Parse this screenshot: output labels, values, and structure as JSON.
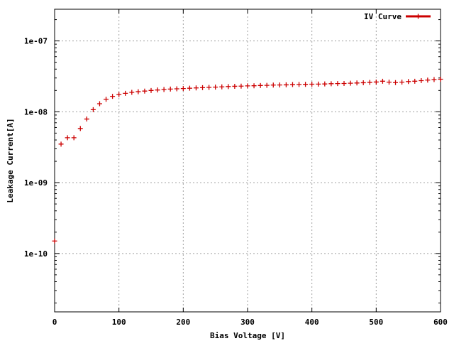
{
  "chart_data": {
    "type": "scatter",
    "title": "",
    "xlabel": "Bias Voltage [V]",
    "ylabel": "Leakage Current[A]",
    "xlim": [
      0,
      600
    ],
    "ylim": [
      1.5e-11,
      2.8e-07
    ],
    "yscale": "log",
    "grid": true,
    "legend_position": "top-right",
    "x_ticks": [
      0,
      100,
      200,
      300,
      400,
      500,
      600
    ],
    "x_tick_labels": [
      "0",
      "100",
      "200",
      "300",
      "400",
      "500",
      "600"
    ],
    "y_ticks": [
      1e-10,
      1e-09,
      1e-08,
      1e-07
    ],
    "y_tick_labels": [
      "1e-10",
      "1e-09",
      "1e-08",
      "1e-07"
    ],
    "series": [
      {
        "name": "IV Curve",
        "color": "#cc0000",
        "marker": "plus",
        "x": [
          0,
          10,
          20,
          30,
          40,
          50,
          60,
          70,
          80,
          90,
          100,
          110,
          120,
          130,
          140,
          150,
          160,
          170,
          180,
          190,
          200,
          210,
          220,
          230,
          240,
          250,
          260,
          270,
          280,
          290,
          300,
          310,
          320,
          330,
          340,
          350,
          360,
          370,
          380,
          390,
          400,
          410,
          420,
          430,
          440,
          450,
          460,
          470,
          480,
          490,
          500,
          510,
          520,
          530,
          540,
          550,
          560,
          570,
          580,
          590,
          600
        ],
        "y": [
          1.5e-10,
          3.5e-09,
          4.3e-09,
          4.3e-09,
          5.8e-09,
          7.9e-09,
          1.07e-08,
          1.3e-08,
          1.5e-08,
          1.65e-08,
          1.75e-08,
          1.82e-08,
          1.88e-08,
          1.92e-08,
          1.96e-08,
          2e-08,
          2.03e-08,
          2.06e-08,
          2.09e-08,
          2.11e-08,
          2.13e-08,
          2.15e-08,
          2.17e-08,
          2.19e-08,
          2.21e-08,
          2.23e-08,
          2.25e-08,
          2.27e-08,
          2.29e-08,
          2.3e-08,
          2.32e-08,
          2.33e-08,
          2.35e-08,
          2.36e-08,
          2.38e-08,
          2.39e-08,
          2.4e-08,
          2.42e-08,
          2.43e-08,
          2.44e-08,
          2.45e-08,
          2.46e-08,
          2.47e-08,
          2.49e-08,
          2.5e-08,
          2.51e-08,
          2.53e-08,
          2.55e-08,
          2.57e-08,
          2.6e-08,
          2.63e-08,
          2.7e-08,
          2.62e-08,
          2.58e-08,
          2.62e-08,
          2.67e-08,
          2.7e-08,
          2.75e-08,
          2.8e-08,
          2.85e-08,
          2.88e-08
        ]
      }
    ]
  }
}
